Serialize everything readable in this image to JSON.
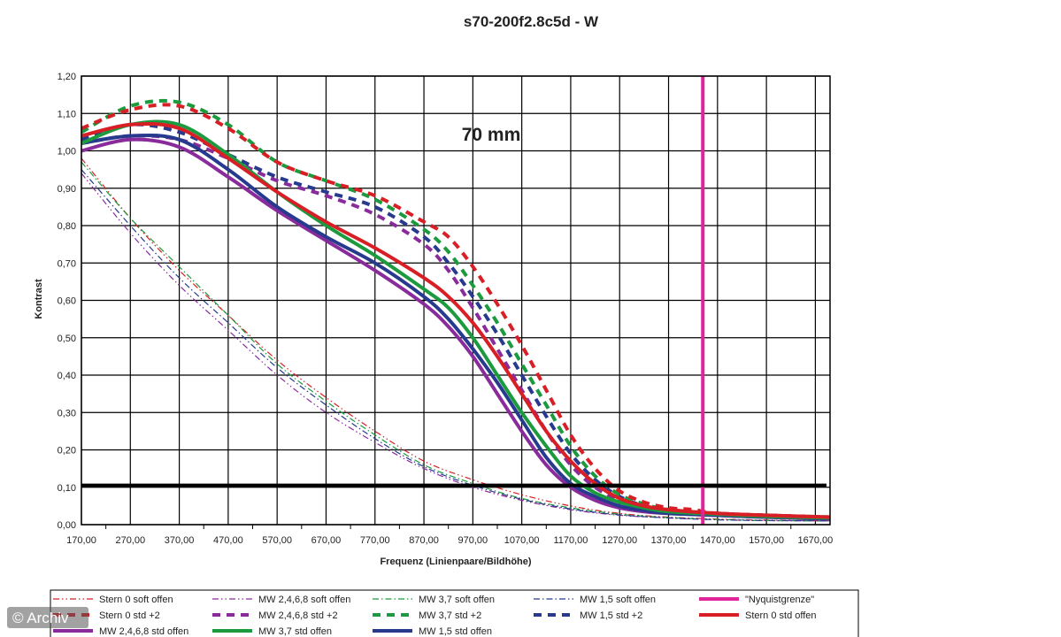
{
  "chart_data": {
    "type": "line",
    "title": "s70-200f2.8c5d - W",
    "annotation": "70 mm",
    "xlabel": "Frequenz (Linienpaare/Bildhöhe)",
    "ylabel": "Kontrast",
    "xlim": [
      170,
      1700
    ],
    "ylim": [
      0,
      1.2
    ],
    "x_ticks": [
      "170,00",
      "270,00",
      "370,00",
      "470,00",
      "570,00",
      "670,00",
      "770,00",
      "870,00",
      "970,00",
      "1070,00",
      "1170,00",
      "1270,00",
      "1370,00",
      "1470,00",
      "1570,00",
      "1670,00"
    ],
    "y_ticks": [
      "0,00",
      "0,10",
      "0,20",
      "0,30",
      "0,40",
      "0,50",
      "0,60",
      "0,70",
      "0,80",
      "0,90",
      "1,00",
      "1,10",
      "1,20"
    ],
    "grid": true,
    "legend_position": "bottom",
    "reference_lines": [
      {
        "name": "\"Nyquistgrenze\"",
        "orientation": "vertical",
        "x": 1440,
        "color": "#e0259a"
      },
      {
        "orientation": "horizontal",
        "y": 0.105,
        "color": "#000000"
      }
    ],
    "series": [
      {
        "name": "Stern 0 soft offen",
        "color": "#d81f26",
        "style": "dashdotdot",
        "width": 1.2,
        "x": [
          170,
          270,
          370,
          470,
          570,
          670,
          770,
          870,
          970,
          1070,
          1170,
          1270,
          1370,
          1470,
          1570,
          1700
        ],
        "y": [
          0.98,
          0.82,
          0.68,
          0.56,
          0.44,
          0.34,
          0.25,
          0.17,
          0.12,
          0.08,
          0.05,
          0.03,
          0.02,
          0.015,
          0.012,
          0.01
        ]
      },
      {
        "name": "MW 2,4,6,8 soft offen",
        "color": "#8a2b9c",
        "style": "dashdotdot",
        "width": 1.2,
        "x": [
          170,
          270,
          370,
          470,
          570,
          670,
          770,
          870,
          970,
          1070,
          1170,
          1270,
          1370,
          1470,
          1570,
          1700
        ],
        "y": [
          0.94,
          0.78,
          0.64,
          0.52,
          0.4,
          0.3,
          0.22,
          0.15,
          0.1,
          0.065,
          0.04,
          0.025,
          0.018,
          0.013,
          0.011,
          0.01
        ]
      },
      {
        "name": "MW 3,7 soft offen",
        "color": "#1c9a3e",
        "style": "dashdot",
        "width": 1.2,
        "x": [
          170,
          270,
          370,
          470,
          570,
          670,
          770,
          870,
          970,
          1070,
          1170,
          1270,
          1370,
          1470,
          1570,
          1700
        ],
        "y": [
          0.97,
          0.82,
          0.69,
          0.56,
          0.43,
          0.33,
          0.24,
          0.16,
          0.11,
          0.07,
          0.045,
          0.028,
          0.019,
          0.014,
          0.011,
          0.01
        ]
      },
      {
        "name": "MW 1,5 soft offen",
        "color": "#283a8e",
        "style": "dashdot",
        "width": 1.2,
        "x": [
          170,
          270,
          370,
          470,
          570,
          670,
          770,
          870,
          970,
          1070,
          1170,
          1270,
          1370,
          1470,
          1570,
          1700
        ],
        "y": [
          0.95,
          0.8,
          0.66,
          0.54,
          0.42,
          0.32,
          0.23,
          0.155,
          0.105,
          0.068,
          0.042,
          0.026,
          0.018,
          0.013,
          0.011,
          0.01
        ]
      },
      {
        "name": "\"Nyquistgrenze\"",
        "color": "#e0259a",
        "style": "legend-only",
        "width": 3.5,
        "x": [],
        "y": []
      },
      {
        "name": "Stern 0 std +2",
        "color": "#d81f26",
        "style": "dash",
        "width": 4,
        "x": [
          170,
          270,
          370,
          470,
          570,
          670,
          770,
          870,
          920,
          970,
          1020,
          1070,
          1120,
          1170,
          1220,
          1270,
          1320,
          1370,
          1420,
          1470,
          1570,
          1700
        ],
        "y": [
          1.06,
          1.11,
          1.12,
          1.06,
          0.97,
          0.92,
          0.88,
          0.81,
          0.77,
          0.69,
          0.59,
          0.48,
          0.36,
          0.24,
          0.15,
          0.09,
          0.06,
          0.045,
          0.04,
          0.03,
          0.025,
          0.02
        ]
      },
      {
        "name": "MW 2,4,6,8 std +2",
        "color": "#8a2b9c",
        "style": "dash",
        "width": 4,
        "x": [
          170,
          270,
          370,
          470,
          570,
          670,
          770,
          870,
          920,
          970,
          1020,
          1070,
          1120,
          1170,
          1220,
          1270,
          1320,
          1370,
          1470,
          1570,
          1700
        ],
        "y": [
          1.02,
          1.04,
          1.03,
          0.98,
          0.92,
          0.88,
          0.83,
          0.75,
          0.68,
          0.58,
          0.47,
          0.36,
          0.25,
          0.16,
          0.1,
          0.065,
          0.045,
          0.035,
          0.025,
          0.02,
          0.015
        ]
      },
      {
        "name": "MW 3,7 std +2",
        "color": "#1c9a3e",
        "style": "dash",
        "width": 4,
        "x": [
          170,
          270,
          370,
          470,
          570,
          670,
          770,
          870,
          920,
          970,
          1020,
          1070,
          1120,
          1170,
          1220,
          1270,
          1320,
          1370,
          1470,
          1570,
          1700
        ],
        "y": [
          1.05,
          1.12,
          1.13,
          1.07,
          0.97,
          0.92,
          0.87,
          0.79,
          0.73,
          0.64,
          0.54,
          0.43,
          0.32,
          0.21,
          0.13,
          0.08,
          0.055,
          0.04,
          0.03,
          0.025,
          0.02
        ]
      },
      {
        "name": "MW 1,5 std +2",
        "color": "#283a8e",
        "style": "dash",
        "width": 4,
        "x": [
          170,
          270,
          370,
          470,
          570,
          670,
          770,
          870,
          920,
          970,
          1020,
          1070,
          1120,
          1170,
          1220,
          1270,
          1320,
          1370,
          1470,
          1570,
          1700
        ],
        "y": [
          1.03,
          1.07,
          1.05,
          0.99,
          0.93,
          0.89,
          0.85,
          0.77,
          0.7,
          0.61,
          0.51,
          0.4,
          0.29,
          0.19,
          0.12,
          0.075,
          0.05,
          0.04,
          0.03,
          0.025,
          0.02
        ]
      },
      {
        "name": "Stern 0 std offen",
        "color": "#d81f26",
        "style": "solid",
        "width": 4,
        "x": [
          170,
          270,
          370,
          470,
          570,
          670,
          770,
          870,
          920,
          970,
          1020,
          1070,
          1120,
          1170,
          1220,
          1270,
          1320,
          1370,
          1470,
          1570,
          1700
        ],
        "y": [
          1.04,
          1.07,
          1.06,
          0.98,
          0.89,
          0.81,
          0.74,
          0.66,
          0.61,
          0.54,
          0.45,
          0.35,
          0.25,
          0.17,
          0.11,
          0.07,
          0.05,
          0.04,
          0.03,
          0.025,
          0.02
        ]
      },
      {
        "name": "MW 2,4,6,8 std offen",
        "color": "#8a2b9c",
        "style": "solid",
        "width": 4,
        "x": [
          170,
          270,
          370,
          470,
          570,
          670,
          770,
          870,
          920,
          970,
          1020,
          1070,
          1120,
          1170,
          1220,
          1270,
          1320,
          1370,
          1470,
          1570,
          1700
        ],
        "y": [
          1.0,
          1.03,
          1.01,
          0.93,
          0.84,
          0.76,
          0.68,
          0.59,
          0.53,
          0.45,
          0.35,
          0.25,
          0.16,
          0.1,
          0.065,
          0.045,
          0.035,
          0.03,
          0.025,
          0.02,
          0.015
        ]
      },
      {
        "name": "MW 3,7 std offen",
        "color": "#1c9a3e",
        "style": "solid",
        "width": 4,
        "x": [
          170,
          270,
          370,
          470,
          570,
          670,
          770,
          870,
          920,
          970,
          1020,
          1070,
          1120,
          1170,
          1220,
          1270,
          1320,
          1370,
          1470,
          1570,
          1700
        ],
        "y": [
          1.02,
          1.07,
          1.07,
          0.99,
          0.89,
          0.8,
          0.72,
          0.63,
          0.58,
          0.5,
          0.4,
          0.3,
          0.21,
          0.13,
          0.085,
          0.06,
          0.045,
          0.035,
          0.028,
          0.022,
          0.018
        ]
      },
      {
        "name": "MW 1,5 std offen",
        "color": "#283a8e",
        "style": "solid",
        "width": 4,
        "x": [
          170,
          270,
          370,
          470,
          570,
          670,
          770,
          870,
          920,
          970,
          1020,
          1070,
          1120,
          1170,
          1220,
          1270,
          1320,
          1370,
          1470,
          1570,
          1700
        ],
        "y": [
          1.02,
          1.04,
          1.03,
          0.95,
          0.85,
          0.77,
          0.7,
          0.61,
          0.55,
          0.47,
          0.38,
          0.28,
          0.18,
          0.11,
          0.075,
          0.05,
          0.038,
          0.03,
          0.025,
          0.02,
          0.016
        ]
      }
    ]
  },
  "credit": "© Archiv"
}
